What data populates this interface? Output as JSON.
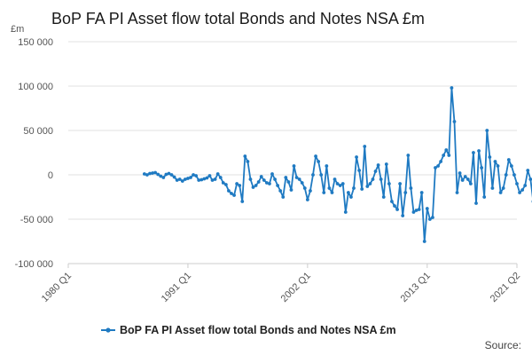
{
  "chart_data": {
    "type": "line",
    "title": "BoP FA PI Asset flow total Bonds and Notes NSA £m",
    "unit_label": "£m",
    "source_label": "Source:",
    "legend_position": "bottom-center",
    "grid": true,
    "ylim": [
      -100000,
      150000
    ],
    "y_ticks": [
      150000,
      100000,
      50000,
      0,
      -50000,
      -100000
    ],
    "y_tick_labels": [
      "150 000",
      "100 000",
      "50 000",
      "0",
      "-50 000",
      "-100 000"
    ],
    "x_ticks": [
      "1980 Q1",
      "1991 Q1",
      "2002 Q1",
      "2013 Q1",
      "2021 Q2"
    ],
    "x_range": [
      "1980 Q1",
      "2021 Q2"
    ],
    "series": [
      {
        "name": "BoP FA PI Asset flow total Bonds and Notes NSA £m",
        "color": "#1f7ac2",
        "start": "1987 Q1",
        "values": [
          1000,
          0,
          1500,
          2000,
          2500,
          500,
          -1500,
          -3000,
          500,
          1500,
          0,
          -2500,
          -6000,
          -5000,
          -7000,
          -5000,
          -4000,
          -3000,
          0,
          -1000,
          -6000,
          -5500,
          -4500,
          -3500,
          -1000,
          -6000,
          -5000,
          1000,
          -3000,
          -9000,
          -11000,
          -18000,
          -21000,
          -23000,
          -10000,
          -12000,
          -30000,
          21000,
          15000,
          -5000,
          -14000,
          -12000,
          -8000,
          -2000,
          -6000,
          -9000,
          -10000,
          1000,
          -5000,
          -12000,
          -18000,
          -25000,
          -3000,
          -8000,
          -17000,
          10000,
          -3000,
          -5000,
          -9000,
          -15000,
          -28000,
          -18000,
          0,
          21000,
          15000,
          0,
          -20000,
          10000,
          -15000,
          -20000,
          -5000,
          -10000,
          -12000,
          -10000,
          -42000,
          -20000,
          -25000,
          -15000,
          20000,
          5000,
          -16000,
          32000,
          -13000,
          -10000,
          -5000,
          4000,
          11000,
          -5000,
          -25000,
          12000,
          -10000,
          -30000,
          -35000,
          -39000,
          -10000,
          -46000,
          -20000,
          22000,
          -15000,
          -42000,
          -40000,
          -39000,
          -20000,
          -75000,
          -38000,
          -50000,
          -48000,
          8000,
          10000,
          15000,
          22000,
          28000,
          22000,
          98000,
          60000,
          -20000,
          2000,
          -6000,
          -2000,
          -5000,
          -10000,
          25000,
          -32000,
          27000,
          8000,
          -25000,
          50000,
          20000,
          -15000,
          15000,
          10000,
          -20000,
          -15000,
          0,
          17000,
          10000,
          0,
          -10000,
          -20000,
          -17000,
          -12000,
          5000,
          -5000,
          -30000,
          28000,
          -10000,
          26000,
          15000,
          -15000,
          40000,
          35000,
          38000,
          -2000,
          -10000,
          -15000,
          -8000,
          25000,
          -10000,
          -30000,
          10000,
          -25000,
          8000,
          -38000,
          -40000,
          -50000,
          -5000,
          -25000,
          15000,
          -27000,
          -30000,
          5000,
          -25000,
          -28000,
          3000,
          -22000
        ]
      }
    ]
  }
}
